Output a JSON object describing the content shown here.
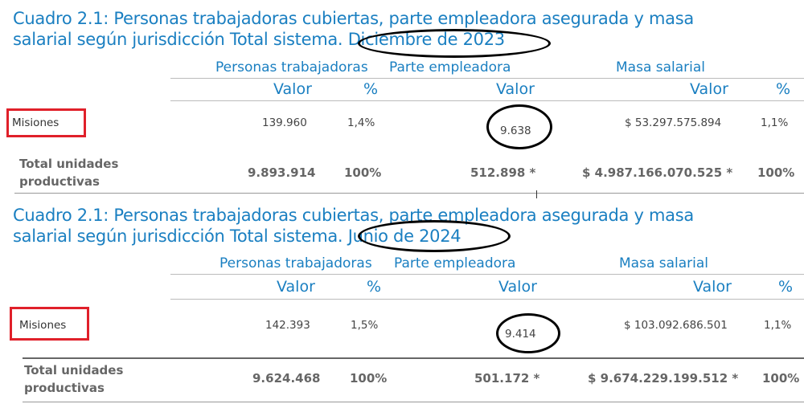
{
  "tables": [
    {
      "title_line1": "Cuadro 2.1: Personas trabajadoras cubiertas, parte empleadora asegurada y masa",
      "title_line2": "salarial según jurisdicción Total sistema. Diciembre de 2023",
      "groups": {
        "personas": "Personas trabajadoras",
        "parte": "Parte empleadora",
        "masa": "Masa salarial"
      },
      "cols": {
        "valor1": "Valor",
        "pct1": "%",
        "valor2": "Valor",
        "valor3": "Valor",
        "pct3": "%"
      },
      "row": {
        "label": "Misiones",
        "personas": "139.960",
        "personas_pct": "1,4%",
        "parte": "9.638",
        "masa": "$ 53.297.575.894",
        "masa_pct": "1,1%"
      },
      "total": {
        "label": "Total unidades productivas",
        "personas": "9.893.914",
        "personas_pct": "100%",
        "parte": "512.898 *",
        "masa": "$ 4.987.166.070.525 *",
        "masa_pct": "100%"
      }
    },
    {
      "title_line1": "Cuadro 2.1: Personas trabajadoras cubiertas, parte empleadora asegurada y masa",
      "title_line2": "salarial según jurisdicción Total sistema. Junio de 2024",
      "groups": {
        "personas": "Personas trabajadoras",
        "parte": "Parte empleadora",
        "masa": "Masa salarial"
      },
      "cols": {
        "valor1": "Valor",
        "pct1": "%",
        "valor2": "Valor",
        "valor3": "Valor",
        "pct3": "%"
      },
      "row": {
        "label": "Misiones",
        "personas": "142.393",
        "personas_pct": "1,5%",
        "parte": "9.414",
        "masa": "$ 103.092.686.501",
        "masa_pct": "1,1%"
      },
      "total": {
        "label": "Total unidades productivas",
        "personas": "9.624.468",
        "personas_pct": "100%",
        "parte": "501.172 *",
        "masa": "$ 9.674.229.199.512 *",
        "masa_pct": "100%"
      }
    }
  ],
  "colors": {
    "title": "#1a7fc1",
    "highlight_box": "#e0202a",
    "annotation_oval": "#000000"
  }
}
